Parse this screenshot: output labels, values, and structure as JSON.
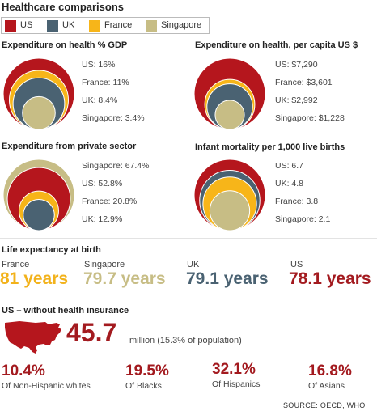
{
  "title": "Healthcare comparisons",
  "legend": [
    {
      "label": "US",
      "color": "#b5161d"
    },
    {
      "label": "UK",
      "color": "#4a6272"
    },
    {
      "label": "France",
      "color": "#f7b519"
    },
    {
      "label": "Singapore",
      "color": "#c7bd85"
    }
  ],
  "chart_data": [
    {
      "type": "bubble",
      "title": "Expenditure on health % GDP",
      "series": [
        {
          "name": "US",
          "value": 16,
          "label": "US: 16%"
        },
        {
          "name": "France",
          "value": 11,
          "label": "France: 11%"
        },
        {
          "name": "UK",
          "value": 8.4,
          "label": "UK: 8.4%"
        },
        {
          "name": "Singapore",
          "value": 3.4,
          "label": "Singapore: 3.4%"
        }
      ]
    },
    {
      "type": "bubble",
      "title": "Expenditure on health, per capita US $",
      "series": [
        {
          "name": "US",
          "value": 7290,
          "label": "US: $7,290"
        },
        {
          "name": "France",
          "value": 3601,
          "label": "France: $3,601"
        },
        {
          "name": "UK",
          "value": 2992,
          "label": "UK: $2,992"
        },
        {
          "name": "Singapore",
          "value": 1228,
          "label": "Singapore: $1,228"
        }
      ]
    },
    {
      "type": "bubble",
      "title": "Expenditure from private sector",
      "series": [
        {
          "name": "Singapore",
          "value": 67.4,
          "label": "Singapore: 67.4%"
        },
        {
          "name": "US",
          "value": 52.8,
          "label": "US: 52.8%"
        },
        {
          "name": "France",
          "value": 20.8,
          "label": "France: 20.8%"
        },
        {
          "name": "UK",
          "value": 12.9,
          "label": "UK: 12.9%"
        }
      ]
    },
    {
      "type": "bubble",
      "title": "Infant mortality per 1,000 live births",
      "series": [
        {
          "name": "US",
          "value": 6.7,
          "label": "US: 6.7"
        },
        {
          "name": "UK",
          "value": 4.8,
          "label": "UK: 4.8"
        },
        {
          "name": "France",
          "value": 3.8,
          "label": "France: 3.8"
        },
        {
          "name": "Singapore",
          "value": 2.1,
          "label": "Singapore: 2.1"
        }
      ]
    },
    {
      "type": "table",
      "title": "Life expectancy at birth",
      "series": [
        {
          "name": "France",
          "value": 81,
          "label": "81 years",
          "color": "#f2b21b"
        },
        {
          "name": "Singapore",
          "value": 79.7,
          "label": "79.7 years",
          "color": "#c7bd85"
        },
        {
          "name": "UK",
          "value": 79.1,
          "label": "79.1 years",
          "color": "#4a6272"
        },
        {
          "name": "US",
          "value": 78.1,
          "label": "78.1 years",
          "color": "#a31a1f"
        }
      ]
    },
    {
      "type": "table",
      "title": "US – without health insurance",
      "total": {
        "value": "45.7",
        "unit": "million (15.3% of population)"
      },
      "series": [
        {
          "name": "Of Non-Hispanic whites",
          "value": 10.4,
          "label": "10.4%"
        },
        {
          "name": "Of Blacks",
          "value": 19.5,
          "label": "19.5%"
        },
        {
          "name": "Of Hispanics",
          "value": 32.1,
          "label": "32.1%"
        },
        {
          "name": "Of Asians",
          "value": 16.8,
          "label": "16.8%"
        }
      ]
    }
  ],
  "source": "SOURCE: OECD, WHO"
}
